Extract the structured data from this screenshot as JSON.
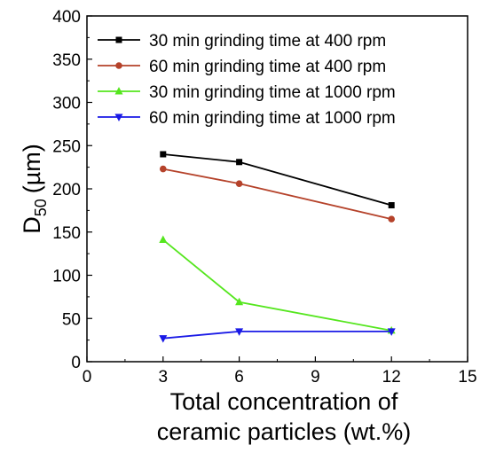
{
  "chart_data": {
    "type": "line",
    "xlabel": [
      "Total concentration of",
      "ceramic particles (wt.%)"
    ],
    "ylabel": {
      "main": "D",
      "sub": "50",
      "unit": "(µm)"
    },
    "xlim": [
      0,
      15
    ],
    "ylim": [
      0,
      400
    ],
    "xticks": [
      0,
      3,
      6,
      9,
      12,
      15
    ],
    "yticks": [
      0,
      50,
      100,
      150,
      200,
      250,
      300,
      350,
      400
    ],
    "grid": false,
    "legend_position": "top-right",
    "series": [
      {
        "name": "30 min grinding time at 400 rpm",
        "color": "#000000",
        "marker": "square",
        "x": [
          3,
          6,
          12
        ],
        "y": [
          240,
          231,
          181
        ]
      },
      {
        "name": "60 min grinding time at 400 rpm",
        "color": "#b5422a",
        "marker": "circle",
        "x": [
          3,
          6,
          12
        ],
        "y": [
          223,
          206,
          165
        ]
      },
      {
        "name": "30 min grinding time at 1000 rpm",
        "color": "#55e61e",
        "marker": "triangle-up",
        "x": [
          3,
          6,
          12
        ],
        "y": [
          141,
          69,
          36
        ]
      },
      {
        "name": "60 min grinding time at 1000 rpm",
        "color": "#1a1ae6",
        "marker": "triangle-down",
        "x": [
          3,
          6,
          12
        ],
        "y": [
          27,
          35,
          35
        ]
      }
    ]
  }
}
